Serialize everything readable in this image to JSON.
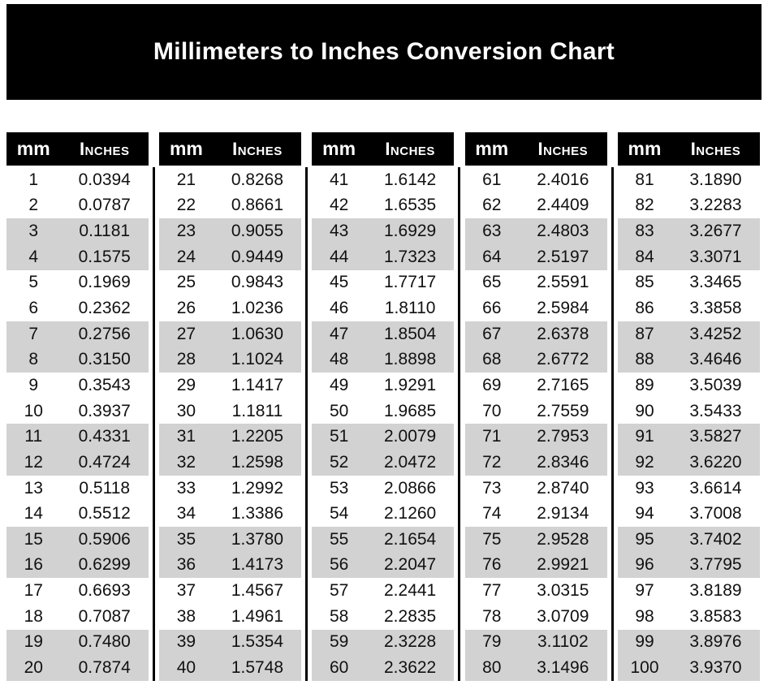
{
  "banner": {
    "title": "Millimeters to Inches Conversion Chart"
  },
  "columns": {
    "mm_label": "mm",
    "inches_label": "Inches"
  },
  "colors": {
    "banner_bg": "#000000",
    "header_bg": "#000000",
    "header_text": "#ffffff",
    "row_stripe": "#d2d2d2",
    "row_plain": "#ffffff",
    "cell_text": "#111111",
    "divider": "#000000"
  },
  "tables": [
    {
      "name": "mm-1-20",
      "rows": [
        {
          "mm": "1",
          "in": "0.0394"
        },
        {
          "mm": "2",
          "in": "0.0787"
        },
        {
          "mm": "3",
          "in": "0.1181"
        },
        {
          "mm": "4",
          "in": "0.1575"
        },
        {
          "mm": "5",
          "in": "0.1969"
        },
        {
          "mm": "6",
          "in": "0.2362"
        },
        {
          "mm": "7",
          "in": "0.2756"
        },
        {
          "mm": "8",
          "in": "0.3150"
        },
        {
          "mm": "9",
          "in": "0.3543"
        },
        {
          "mm": "10",
          "in": "0.3937"
        },
        {
          "mm": "11",
          "in": "0.4331"
        },
        {
          "mm": "12",
          "in": "0.4724"
        },
        {
          "mm": "13",
          "in": "0.5118"
        },
        {
          "mm": "14",
          "in": "0.5512"
        },
        {
          "mm": "15",
          "in": "0.5906"
        },
        {
          "mm": "16",
          "in": "0.6299"
        },
        {
          "mm": "17",
          "in": "0.6693"
        },
        {
          "mm": "18",
          "in": "0.7087"
        },
        {
          "mm": "19",
          "in": "0.7480"
        },
        {
          "mm": "20",
          "in": "0.7874"
        }
      ]
    },
    {
      "name": "mm-21-40",
      "rows": [
        {
          "mm": "21",
          "in": "0.8268"
        },
        {
          "mm": "22",
          "in": "0.8661"
        },
        {
          "mm": "23",
          "in": "0.9055"
        },
        {
          "mm": "24",
          "in": "0.9449"
        },
        {
          "mm": "25",
          "in": "0.9843"
        },
        {
          "mm": "26",
          "in": "1.0236"
        },
        {
          "mm": "27",
          "in": "1.0630"
        },
        {
          "mm": "28",
          "in": "1.1024"
        },
        {
          "mm": "29",
          "in": "1.1417"
        },
        {
          "mm": "30",
          "in": "1.1811"
        },
        {
          "mm": "31",
          "in": "1.2205"
        },
        {
          "mm": "32",
          "in": "1.2598"
        },
        {
          "mm": "33",
          "in": "1.2992"
        },
        {
          "mm": "34",
          "in": "1.3386"
        },
        {
          "mm": "35",
          "in": "1.3780"
        },
        {
          "mm": "36",
          "in": "1.4173"
        },
        {
          "mm": "37",
          "in": "1.4567"
        },
        {
          "mm": "38",
          "in": "1.4961"
        },
        {
          "mm": "39",
          "in": "1.5354"
        },
        {
          "mm": "40",
          "in": "1.5748"
        }
      ]
    },
    {
      "name": "mm-41-60",
      "rows": [
        {
          "mm": "41",
          "in": "1.6142"
        },
        {
          "mm": "42",
          "in": "1.6535"
        },
        {
          "mm": "43",
          "in": "1.6929"
        },
        {
          "mm": "44",
          "in": "1.7323"
        },
        {
          "mm": "45",
          "in": "1.7717"
        },
        {
          "mm": "46",
          "in": "1.8110"
        },
        {
          "mm": "47",
          "in": "1.8504"
        },
        {
          "mm": "48",
          "in": "1.8898"
        },
        {
          "mm": "49",
          "in": "1.9291"
        },
        {
          "mm": "50",
          "in": "1.9685"
        },
        {
          "mm": "51",
          "in": "2.0079"
        },
        {
          "mm": "52",
          "in": "2.0472"
        },
        {
          "mm": "53",
          "in": "2.0866"
        },
        {
          "mm": "54",
          "in": "2.1260"
        },
        {
          "mm": "55",
          "in": "2.1654"
        },
        {
          "mm": "56",
          "in": "2.2047"
        },
        {
          "mm": "57",
          "in": "2.2441"
        },
        {
          "mm": "58",
          "in": "2.2835"
        },
        {
          "mm": "59",
          "in": "2.3228"
        },
        {
          "mm": "60",
          "in": "2.3622"
        }
      ]
    },
    {
      "name": "mm-61-80",
      "rows": [
        {
          "mm": "61",
          "in": "2.4016"
        },
        {
          "mm": "62",
          "in": "2.4409"
        },
        {
          "mm": "63",
          "in": "2.4803"
        },
        {
          "mm": "64",
          "in": "2.5197"
        },
        {
          "mm": "65",
          "in": "2.5591"
        },
        {
          "mm": "66",
          "in": "2.5984"
        },
        {
          "mm": "67",
          "in": "2.6378"
        },
        {
          "mm": "68",
          "in": "2.6772"
        },
        {
          "mm": "69",
          "in": "2.7165"
        },
        {
          "mm": "70",
          "in": "2.7559"
        },
        {
          "mm": "71",
          "in": "2.7953"
        },
        {
          "mm": "72",
          "in": "2.8346"
        },
        {
          "mm": "73",
          "in": "2.8740"
        },
        {
          "mm": "74",
          "in": "2.9134"
        },
        {
          "mm": "75",
          "in": "2.9528"
        },
        {
          "mm": "76",
          "in": "2.9921"
        },
        {
          "mm": "77",
          "in": "3.0315"
        },
        {
          "mm": "78",
          "in": "3.0709"
        },
        {
          "mm": "79",
          "in": "3.1102"
        },
        {
          "mm": "80",
          "in": "3.1496"
        }
      ]
    },
    {
      "name": "mm-81-100",
      "rows": [
        {
          "mm": "81",
          "in": "3.1890"
        },
        {
          "mm": "82",
          "in": "3.2283"
        },
        {
          "mm": "83",
          "in": "3.2677"
        },
        {
          "mm": "84",
          "in": "3.3071"
        },
        {
          "mm": "85",
          "in": "3.3465"
        },
        {
          "mm": "86",
          "in": "3.3858"
        },
        {
          "mm": "87",
          "in": "3.4252"
        },
        {
          "mm": "88",
          "in": "3.4646"
        },
        {
          "mm": "89",
          "in": "3.5039"
        },
        {
          "mm": "90",
          "in": "3.5433"
        },
        {
          "mm": "91",
          "in": "3.5827"
        },
        {
          "mm": "92",
          "in": "3.6220"
        },
        {
          "mm": "93",
          "in": "3.6614"
        },
        {
          "mm": "94",
          "in": "3.7008"
        },
        {
          "mm": "95",
          "in": "3.7402"
        },
        {
          "mm": "96",
          "in": "3.7795"
        },
        {
          "mm": "97",
          "in": "3.8189"
        },
        {
          "mm": "98",
          "in": "3.8583"
        },
        {
          "mm": "99",
          "in": "3.8976"
        },
        {
          "mm": "100",
          "in": "3.9370"
        }
      ]
    }
  ]
}
